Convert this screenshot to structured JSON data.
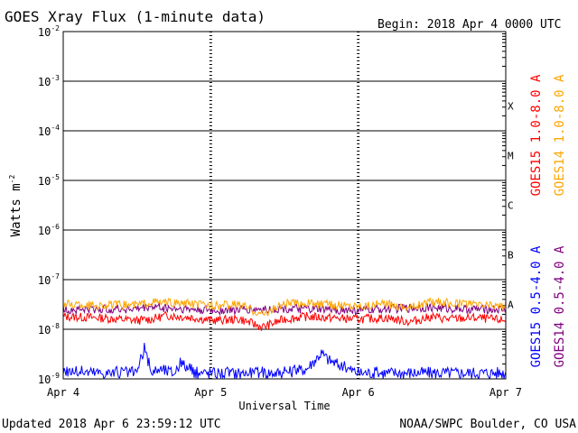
{
  "title": "GOES Xray Flux (1-minute data)",
  "begin_label": "Begin:  2018 Apr 4 0000 UTC",
  "updated_label": "Updated 2018 Apr  6 23:59:12 UTC",
  "credit_label": "NOAA/SWPC Boulder, CO USA",
  "colors": {
    "goes15_long": "#ff0000",
    "goes14_long": "#ffa500",
    "goes15_short": "#0000ff",
    "goes14_short": "#800080",
    "axis": "#000000",
    "background": "#ffffff"
  },
  "chart_data": {
    "type": "line",
    "title": "GOES Xray Flux (1-minute data)",
    "xlabel": "Universal Time",
    "ylabel": "Watts m",
    "ylabel_sup": "-2",
    "y_scale": "log",
    "ylim": [
      1e-09,
      0.01
    ],
    "xlim_days": [
      0,
      3
    ],
    "x_ticks": [
      "Apr 4",
      "Apr 5",
      "Apr 6",
      "Apr 7"
    ],
    "y_ticks": [
      {
        "base": "10",
        "exp": "-2"
      },
      {
        "base": "10",
        "exp": "-3"
      },
      {
        "base": "10",
        "exp": "-4"
      },
      {
        "base": "10",
        "exp": "-5"
      },
      {
        "base": "10",
        "exp": "-6"
      },
      {
        "base": "10",
        "exp": "-7"
      },
      {
        "base": "10",
        "exp": "-8"
      },
      {
        "base": "10",
        "exp": "-9"
      }
    ],
    "flare_classes": [
      {
        "label": "X",
        "flux": 0.0001
      },
      {
        "label": "M",
        "flux": 1e-05
      },
      {
        "label": "C",
        "flux": 1e-06
      },
      {
        "label": "B",
        "flux": 1e-07
      },
      {
        "label": "A",
        "flux": 1e-08
      }
    ],
    "grid": true,
    "legend_position": "right, vertical",
    "series": [
      {
        "name": "GOES15 1.0-8.0 A",
        "color": "#ff0000",
        "x_days": [
          0,
          0.25,
          0.5,
          0.6,
          0.7,
          0.9,
          1.0,
          1.2,
          1.35,
          1.5,
          1.65,
          1.8,
          2.0,
          2.2,
          2.35,
          2.5,
          2.6,
          2.8,
          3.0
        ],
        "y": [
          1.8e-08,
          1.7e-08,
          1.5e-08,
          1.6e-08,
          1.9e-08,
          1.7e-08,
          1.5e-08,
          1.6e-08,
          1.1e-08,
          1.6e-08,
          1.8e-08,
          1.7e-08,
          1.6e-08,
          1.7e-08,
          1.4e-08,
          1.8e-08,
          1.6e-08,
          1.7e-08,
          1.5e-08
        ]
      },
      {
        "name": "GOES14 1.0-8.0 A",
        "color": "#ffa500",
        "x_days": [
          0,
          0.25,
          0.5,
          0.6,
          0.7,
          0.9,
          1.0,
          1.2,
          1.35,
          1.5,
          1.65,
          1.8,
          2.0,
          2.2,
          2.35,
          2.5,
          2.6,
          2.8,
          3.0
        ],
        "y": [
          3.2e-08,
          3e-08,
          3.1e-08,
          3.6e-08,
          3.4e-08,
          3.2e-08,
          3e-08,
          3.1e-08,
          2e-08,
          3.3e-08,
          3.4e-08,
          3.1e-08,
          3e-08,
          3.2e-08,
          2.8e-08,
          3.6e-08,
          3.4e-08,
          3.1e-08,
          3e-08
        ]
      },
      {
        "name": "GOES15 0.5-4.0 A",
        "color": "#0000ff",
        "x_days": [
          0,
          0.25,
          0.5,
          0.55,
          0.6,
          0.65,
          0.75,
          0.8,
          0.85,
          0.9,
          1.0,
          1.2,
          1.5,
          1.65,
          1.75,
          1.8,
          1.9,
          2.0,
          2.2,
          2.4,
          2.6,
          2.8,
          3.0
        ],
        "y": [
          1.1e-09,
          1e-09,
          1e-09,
          3e-09,
          1e-09,
          1.2e-09,
          1e-09,
          1.6e-09,
          1.2e-09,
          1e-09,
          1e-09,
          1e-09,
          1e-09,
          1.2e-09,
          2.5e-09,
          1.8e-09,
          1.3e-09,
          1e-09,
          1e-09,
          1e-09,
          1e-09,
          1e-09,
          1e-09
        ]
      },
      {
        "name": "GOES14 0.5-4.0 A",
        "color": "#800080",
        "x_days": [
          0,
          0.5,
          0.6,
          0.7,
          1.0,
          1.5,
          1.8,
          2.0,
          2.5,
          2.6,
          3.0
        ],
        "y": [
          2.5e-08,
          2.6e-08,
          2.9e-08,
          2.7e-08,
          2.4e-08,
          2.6e-08,
          2.5e-08,
          2.4e-08,
          2.8e-08,
          2.6e-08,
          2.5e-08
        ]
      }
    ]
  }
}
